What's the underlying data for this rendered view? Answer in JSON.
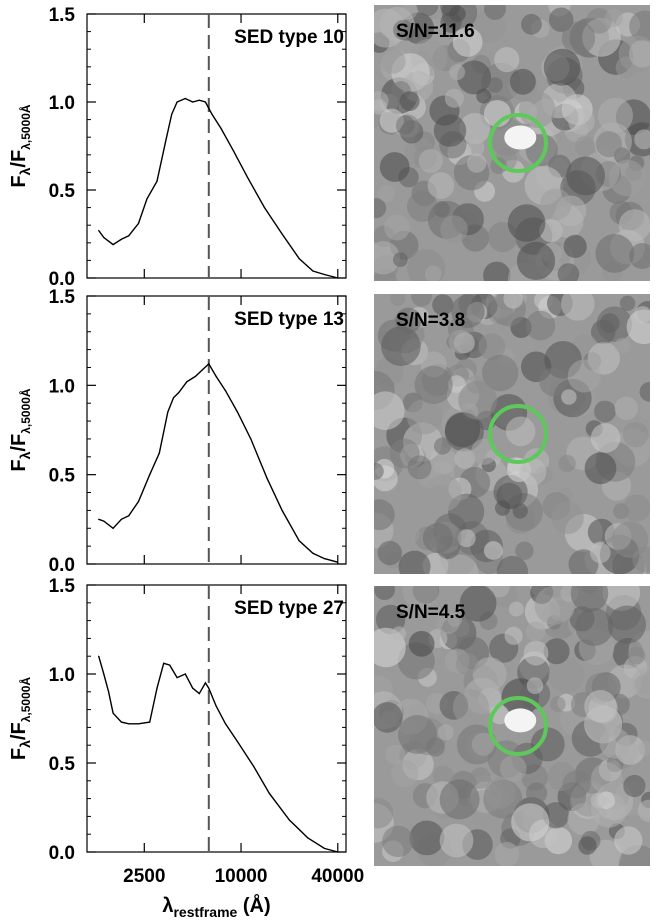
{
  "chart_data": [
    {
      "type": "line",
      "title": "SED type 10",
      "xlabel": "λrestframe (Å)",
      "ylabel": "Fλ/Fλ,5000Å",
      "xscale": "log",
      "xlim": [
        1100,
        45000
      ],
      "ylim": [
        0.0,
        1.5
      ],
      "reference_line_x": 6300,
      "x": [
        1300,
        1400,
        1600,
        1800,
        2000,
        2300,
        2600,
        3000,
        3400,
        3700,
        4000,
        4500,
        5000,
        5500,
        6000,
        6600,
        7500,
        9000,
        11000,
        14000,
        18000,
        23000,
        28000,
        33000,
        40000
      ],
      "y": [
        0.27,
        0.23,
        0.19,
        0.22,
        0.24,
        0.31,
        0.45,
        0.55,
        0.78,
        0.93,
        1.0,
        1.02,
        1.0,
        1.01,
        1.0,
        0.93,
        0.85,
        0.72,
        0.57,
        0.4,
        0.25,
        0.11,
        0.04,
        0.02,
        0.0
      ]
    },
    {
      "type": "line",
      "title": "SED type 13",
      "xlabel": "λrestframe (Å)",
      "ylabel": "Fλ/Fλ,5000Å",
      "xscale": "log",
      "xlim": [
        1100,
        45000
      ],
      "ylim": [
        0.0,
        1.5
      ],
      "reference_line_x": 6300,
      "x": [
        1300,
        1400,
        1600,
        1800,
        2000,
        2300,
        2700,
        3100,
        3500,
        3800,
        4100,
        4600,
        5200,
        5800,
        6300,
        7000,
        8000,
        9500,
        11500,
        14500,
        18000,
        23000,
        28000,
        33000,
        40000
      ],
      "y": [
        0.25,
        0.24,
        0.2,
        0.25,
        0.27,
        0.35,
        0.5,
        0.62,
        0.85,
        0.93,
        0.96,
        1.02,
        1.05,
        1.09,
        1.12,
        1.05,
        0.97,
        0.85,
        0.7,
        0.48,
        0.3,
        0.13,
        0.06,
        0.03,
        0.01
      ]
    },
    {
      "type": "line",
      "title": "SED type 27",
      "xlabel": "λrestframe (Å)",
      "ylabel": "Fλ/Fλ,5000Å",
      "xscale": "log",
      "xlim": [
        1100,
        45000
      ],
      "ylim": [
        0.0,
        1.5
      ],
      "reference_line_x": 6300,
      "x": [
        1300,
        1400,
        1500,
        1600,
        1800,
        2000,
        2300,
        2700,
        3000,
        3300,
        3600,
        4000,
        4500,
        5000,
        5500,
        6000,
        6300,
        7000,
        8000,
        9500,
        12000,
        15000,
        20000,
        26000,
        33000,
        40000
      ],
      "y": [
        1.1,
        1.0,
        0.9,
        0.78,
        0.73,
        0.72,
        0.72,
        0.73,
        0.92,
        1.06,
        1.05,
        0.98,
        1.0,
        0.92,
        0.89,
        0.95,
        0.92,
        0.82,
        0.72,
        0.62,
        0.48,
        0.33,
        0.18,
        0.08,
        0.02,
        0.0
      ]
    }
  ],
  "ytick_labels": [
    "0.0",
    "0.5",
    "1.0",
    "1.5"
  ],
  "xtick_values": [
    2500,
    10000,
    40000
  ],
  "xtick_labels": [
    "2500",
    "10000",
    "40000"
  ],
  "x_axis_title": {
    "base": "λ",
    "sub": "restframe",
    "unit": " (Å)"
  },
  "y_axis_title": {
    "base": "F",
    "sub1": "λ",
    "mid": "/F",
    "sub2": "λ,5000Å"
  },
  "stamps": [
    {
      "label": "S/N=11.6",
      "source": "bright"
    },
    {
      "label": "S/N=3.8",
      "source": "faint"
    },
    {
      "label": "S/N=4.5",
      "source": "bright"
    }
  ],
  "colors": {
    "line": "#000000",
    "refline": "#555555",
    "ring": "#5ec95b",
    "stamp_bg": "#9a9a9a"
  }
}
